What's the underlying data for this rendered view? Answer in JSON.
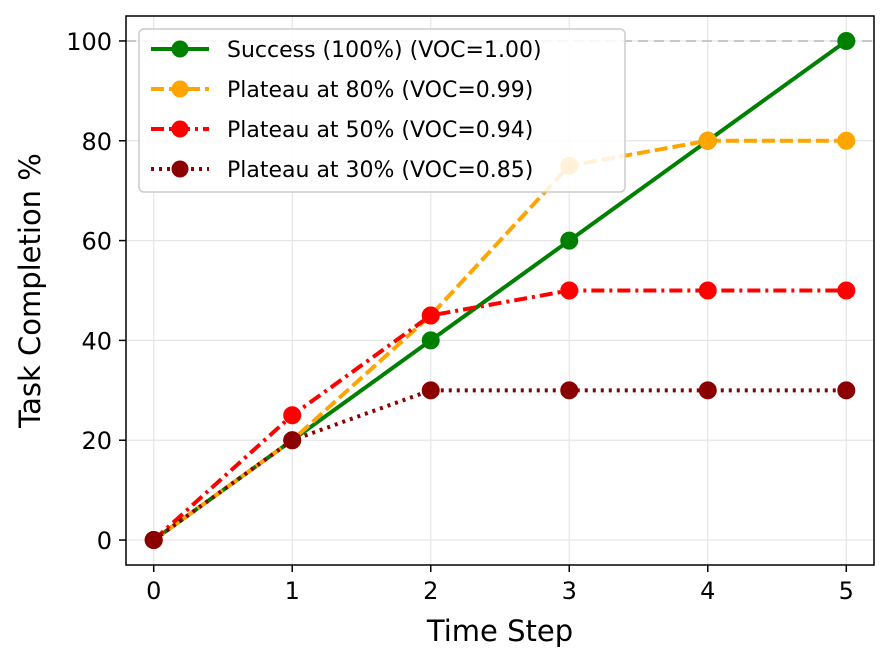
{
  "chart_data": {
    "type": "line",
    "xlabel": "Time Step",
    "ylabel": "Task Completion %",
    "x": [
      0,
      1,
      2,
      3,
      4,
      5
    ],
    "xticks": [
      0,
      1,
      2,
      3,
      4,
      5
    ],
    "yticks": [
      0,
      20,
      40,
      60,
      80,
      100
    ],
    "xlim": [
      -0.2,
      5.2
    ],
    "ylim": [
      -5,
      105
    ],
    "grid": true,
    "legend_position": "top-left",
    "reference_line": {
      "y": 100,
      "color": "#c8c8c8",
      "style": "dashed"
    },
    "series": [
      {
        "name": "Success (100%) (VOC=1.00)",
        "values": [
          0,
          20,
          40,
          60,
          80,
          100
        ],
        "color": "#008000",
        "style": "solid"
      },
      {
        "name": "Plateau at 80% (VOC=0.99)",
        "values": [
          0,
          20,
          45,
          75,
          80,
          80
        ],
        "color": "#ffa500",
        "style": "dashed"
      },
      {
        "name": "Plateau at 50% (VOC=0.94)",
        "values": [
          0,
          25,
          45,
          50,
          50,
          50
        ],
        "color": "#ff0000",
        "style": "dashdot"
      },
      {
        "name": "Plateau at 30% (VOC=0.85)",
        "values": [
          0,
          20,
          30,
          30,
          30,
          30
        ],
        "color": "#8b0000",
        "style": "dotted"
      }
    ]
  }
}
